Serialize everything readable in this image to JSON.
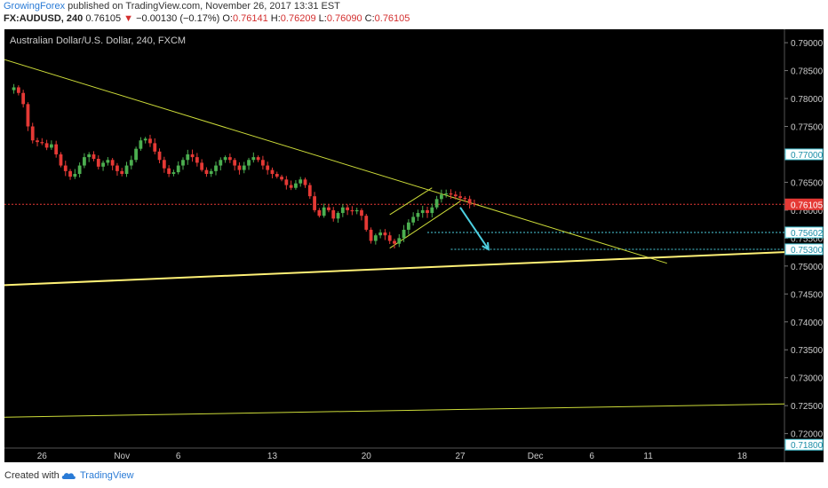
{
  "header": {
    "author": "GrowingForex",
    "published_text": "published on TradingView.com, November 26, 2017 13:31 EST",
    "symbol": "FX:AUDUSD, 240",
    "last": "0.76105",
    "change_arrow": "▼",
    "change": "−0.00130 (−0.17%)",
    "o_label": "O:",
    "o_val": "0.76141",
    "h_label": "H:",
    "h_val": "0.76209",
    "l_label": "L:",
    "l_val": "0.76090",
    "c_label": "C:",
    "c_val": "0.76105"
  },
  "footer": {
    "created_text": "Created with",
    "brand": "TradingView",
    "logo_icon": "tradingview-cloud-icon"
  },
  "colors": {
    "background": "#000000",
    "up_candle": "#4caf50",
    "down_candle": "#e53935",
    "trendline": "#cddc39",
    "trendline_strong": "#fff176",
    "price_line": "#e53935",
    "target": "#4dd0e1"
  },
  "chart_data": {
    "type": "candlestick",
    "title": "Australian Dollar/U.S. Dollar, 240, FXCM",
    "ylim": [
      0.7174,
      0.7924
    ],
    "y_ticks": [
      "0.79000",
      "0.78500",
      "0.78000",
      "0.77500",
      "0.77000",
      "0.76500",
      "0.76000",
      "0.75500",
      "0.75000",
      "0.74500",
      "0.74000",
      "0.73500",
      "0.73000",
      "0.72500",
      "0.72000",
      "0.71800"
    ],
    "x_ticks": [
      "26",
      "Nov",
      "6",
      "13",
      "20",
      "27",
      "Dec",
      "6",
      "11",
      "18"
    ],
    "x_tick_index": [
      8,
      25,
      37,
      57,
      77,
      97,
      113,
      125,
      137,
      157
    ],
    "x_range_bars": [
      0,
      166
    ],
    "price_labels": [
      {
        "value": 0.77,
        "text": "0.77000",
        "style": "target"
      },
      {
        "value": 0.76105,
        "text": "0.76105",
        "style": "current"
      },
      {
        "value": 0.75602,
        "text": "0.75602",
        "style": "target"
      },
      {
        "value": 0.753,
        "text": "0.75300",
        "style": "target"
      },
      {
        "value": 0.718,
        "text": "0.71800",
        "style": "target"
      }
    ],
    "close_path": [
      [
        0,
        0.7815
      ],
      [
        2,
        0.782
      ],
      [
        3,
        0.781
      ],
      [
        4,
        0.779
      ],
      [
        5,
        0.775
      ],
      [
        6,
        0.7725
      ],
      [
        7,
        0.7722
      ],
      [
        8,
        0.772
      ],
      [
        9,
        0.7712
      ],
      [
        10,
        0.7718
      ],
      [
        11,
        0.77
      ],
      [
        12,
        0.768
      ],
      [
        13,
        0.767
      ],
      [
        14,
        0.766
      ],
      [
        15,
        0.7665
      ],
      [
        16,
        0.768
      ],
      [
        17,
        0.7695
      ],
      [
        18,
        0.77
      ],
      [
        19,
        0.7692
      ],
      [
        20,
        0.7678
      ],
      [
        21,
        0.7685
      ],
      [
        22,
        0.769
      ],
      [
        23,
        0.768
      ],
      [
        24,
        0.767
      ],
      [
        25,
        0.7665
      ],
      [
        26,
        0.768
      ],
      [
        27,
        0.769
      ],
      [
        28,
        0.771
      ],
      [
        29,
        0.7725
      ],
      [
        30,
        0.7728
      ],
      [
        31,
        0.772
      ],
      [
        32,
        0.7705
      ],
      [
        33,
        0.769
      ],
      [
        34,
        0.7675
      ],
      [
        35,
        0.7665
      ],
      [
        36,
        0.7668
      ],
      [
        37,
        0.768
      ],
      [
        38,
        0.769
      ],
      [
        39,
        0.77
      ],
      [
        40,
        0.7695
      ],
      [
        41,
        0.7685
      ],
      [
        42,
        0.7672
      ],
      [
        43,
        0.7665
      ],
      [
        44,
        0.767
      ],
      [
        45,
        0.768
      ],
      [
        46,
        0.769
      ],
      [
        47,
        0.7695
      ],
      [
        48,
        0.769
      ],
      [
        49,
        0.768
      ],
      [
        50,
        0.7672
      ],
      [
        51,
        0.768
      ],
      [
        52,
        0.769
      ],
      [
        53,
        0.7695
      ],
      [
        54,
        0.769
      ],
      [
        55,
        0.768
      ],
      [
        56,
        0.7672
      ],
      [
        57,
        0.7665
      ],
      [
        58,
        0.766
      ],
      [
        59,
        0.7655
      ],
      [
        60,
        0.7645
      ],
      [
        61,
        0.764
      ],
      [
        62,
        0.7648
      ],
      [
        63,
        0.7655
      ],
      [
        64,
        0.7645
      ],
      [
        65,
        0.7625
      ],
      [
        66,
        0.76
      ],
      [
        67,
        0.759
      ],
      [
        68,
        0.7605
      ],
      [
        69,
        0.76
      ],
      [
        70,
        0.7585
      ],
      [
        71,
        0.7595
      ],
      [
        72,
        0.7605
      ],
      [
        73,
        0.76
      ],
      [
        74,
        0.7598
      ],
      [
        75,
        0.76
      ],
      [
        76,
        0.759
      ],
      [
        77,
        0.7565
      ],
      [
        78,
        0.7545
      ],
      [
        79,
        0.7555
      ],
      [
        80,
        0.756
      ],
      [
        81,
        0.7555
      ],
      [
        82,
        0.7545
      ],
      [
        83,
        0.754
      ],
      [
        84,
        0.755
      ],
      [
        85,
        0.7565
      ],
      [
        86,
        0.7578
      ],
      [
        87,
        0.7588
      ],
      [
        88,
        0.7595
      ],
      [
        89,
        0.76
      ],
      [
        90,
        0.7595
      ],
      [
        91,
        0.7605
      ],
      [
        92,
        0.762
      ],
      [
        93,
        0.7628
      ],
      [
        94,
        0.763
      ],
      [
        95,
        0.7628
      ],
      [
        96,
        0.7625
      ],
      [
        97,
        0.7622
      ],
      [
        98,
        0.762
      ],
      [
        99,
        0.7612
      ],
      [
        100,
        0.76105
      ]
    ],
    "trendlines": [
      {
        "name": "descending-resistance",
        "points": [
          [
            -2,
            0.7875
          ],
          [
            141,
            0.7505
          ]
        ],
        "width": 1,
        "color": "trendline"
      },
      {
        "name": "ascending-support",
        "points": [
          [
            -2,
            0.7465
          ],
          [
            166,
            0.7525
          ]
        ],
        "width": 2,
        "color": "trendline_strong"
      },
      {
        "name": "lower-support",
        "points": [
          [
            -2,
            0.7229
          ],
          [
            166,
            0.7253
          ]
        ],
        "width": 1,
        "color": "trendline"
      },
      {
        "name": "channel-lower",
        "points": [
          [
            82,
            0.7532
          ],
          [
            97,
            0.7616
          ]
        ],
        "width": 1,
        "color": "trendline"
      },
      {
        "name": "channel-upper",
        "points": [
          [
            82,
            0.7592
          ],
          [
            91,
            0.764
          ]
        ],
        "width": 1,
        "color": "trendline"
      }
    ],
    "horizontal_levels": [
      {
        "name": "current-price",
        "value": 0.76105,
        "from": 0,
        "color": "price_line"
      },
      {
        "name": "target-1",
        "value": 0.75602,
        "from": 90,
        "color": "target"
      },
      {
        "name": "target-2",
        "value": 0.753,
        "from": 95,
        "color": "target"
      }
    ],
    "projection_arrow": {
      "from": [
        97,
        0.7605
      ],
      "to": [
        103,
        0.753
      ]
    }
  }
}
